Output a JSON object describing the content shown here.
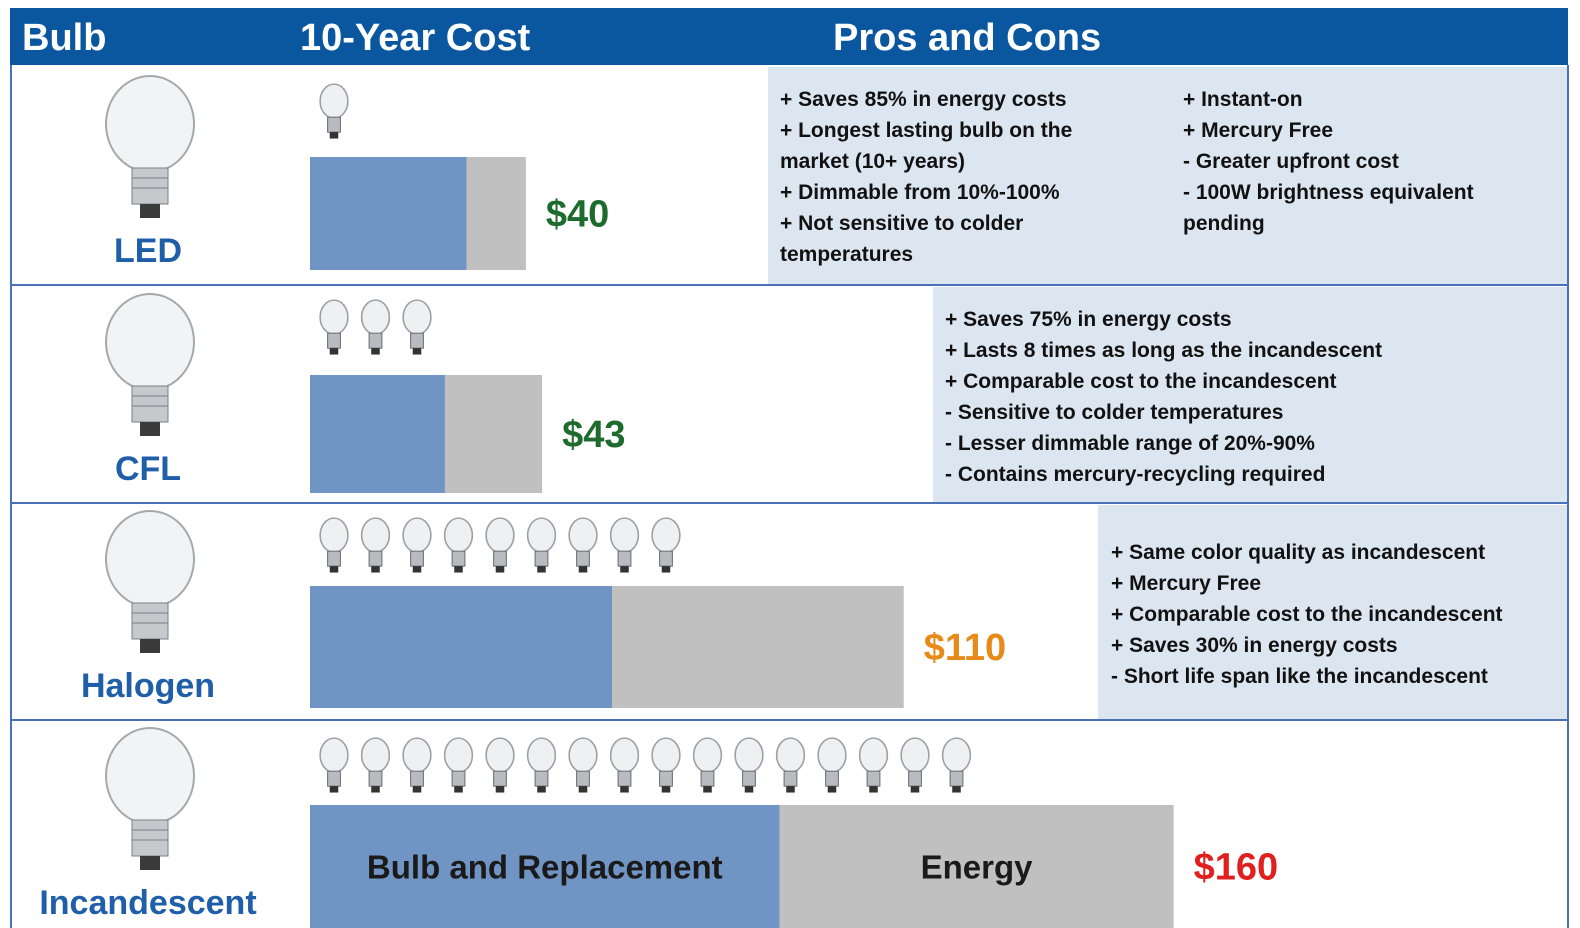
{
  "header": {
    "bulb": "Bulb",
    "cost": "10-Year Cost",
    "pros_cons": "Pros and Cons"
  },
  "chart_data": {
    "type": "bar",
    "orientation": "horizontal",
    "stacked": true,
    "categories": [
      "LED",
      "CFL",
      "Halogen",
      "Incandescent"
    ],
    "xlim": [
      0,
      234
    ],
    "series": [
      {
        "name": "Bulb and Replacement",
        "color": "#7094c4",
        "values": [
          29,
          25,
          56,
          87
        ]
      },
      {
        "name": "Energy",
        "color": "#c0c0c0",
        "values": [
          11,
          18,
          54,
          73
        ]
      }
    ],
    "totals": [
      40,
      43,
      110,
      160
    ],
    "total_labels": [
      "$40",
      "$43",
      "$110",
      "$160"
    ],
    "total_colors": [
      "#1e6b2e",
      "#1e6b2e",
      "#e88a1a",
      "#e0201f"
    ]
  },
  "pros_cons": [
    [
      [
        "+ Saves 85% in energy costs",
        "+ Longest lasting bulb on the",
        "market (10+ years)",
        "+ Dimmable from 10%-100%",
        "+ Not sensitive to colder",
        "temperatures"
      ],
      [
        "+ Instant-on",
        "+ Mercury Free",
        "- Greater upfront cost",
        "- 100W brightness equivalent",
        "pending"
      ]
    ],
    [
      [
        "+ Saves 75% in energy costs",
        "+ Lasts 8 times as long as the incandescent",
        "+ Comparable cost to the incandescent",
        "- Sensitive to colder temperatures",
        "- Lesser dimmable range of 20%-90%",
        "- Contains mercury-recycling required"
      ]
    ],
    [
      [
        "+ Same color quality as incandescent",
        "+ Mercury Free",
        "+ Comparable cost to the incandescent",
        "+ Saves 30% in energy costs",
        "- Short life span like the incandescent"
      ]
    ],
    []
  ]
}
